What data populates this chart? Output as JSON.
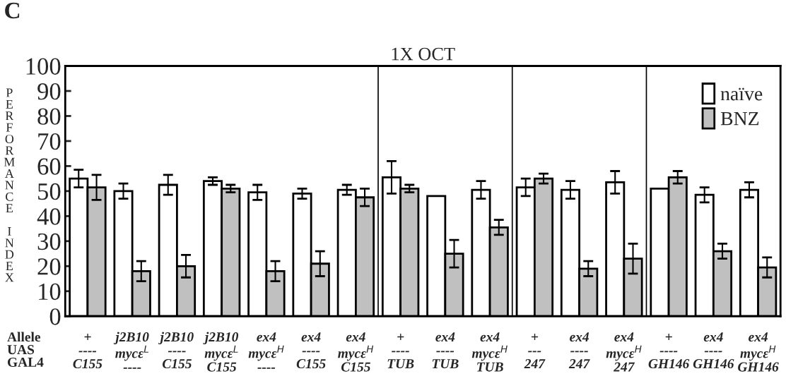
{
  "chart_data": {
    "type": "bar",
    "title": "1X OCT",
    "ylabel": "PERFORMANCE INDEX",
    "categories": [
      "+\n----\nC155",
      "j2B10\nmycε$^{L}$\n----",
      "j2B10\n----\nC155",
      "j2B10\nmycε$^{L}$\nC155",
      "ex4\nmycε$^{H}$\n----",
      "ex4\n----\nC155",
      "ex4\nmycε$^{H}$\nC155",
      "+\n----\nTUB",
      "ex4\n----\nTUB",
      "ex4\nmycε$^{H}$\nTUB",
      "+\n---\n247",
      "ex4\n----\n247",
      "ex4\nmycε$^{H}$\n247",
      "+\n----\nGH146",
      "ex4\n----\nGH146",
      "ex4\nmycε$^{H}$\nGH146"
    ],
    "series": [
      {
        "name": "naïve",
        "color": "#ffffff",
        "values": [
          55,
          50,
          52.5,
          54,
          49.5,
          49,
          50.5,
          55.5,
          48,
          50.5,
          51.5,
          50.5,
          53.5,
          51,
          48.5,
          50.5
        ],
        "errors": [
          3.5,
          3,
          4,
          1.5,
          3,
          2,
          2,
          6.5,
          null,
          3.5,
          3.5,
          3.5,
          4.5,
          null,
          3,
          3
        ]
      },
      {
        "name": "BNZ",
        "color": "#c0c0c0",
        "values": [
          51.5,
          18,
          20,
          51,
          18,
          21,
          47.5,
          51,
          25,
          35.5,
          55,
          19,
          23,
          55.5,
          26,
          19.5
        ],
        "errors": [
          5,
          4,
          4.5,
          1.5,
          4,
          5,
          3.5,
          1.5,
          5.5,
          3,
          2,
          3,
          6,
          2.5,
          3,
          4
        ]
      }
    ],
    "ylim": [
      0,
      100
    ],
    "yticks": [
      0,
      10,
      20,
      30,
      40,
      50,
      60,
      70,
      80,
      90,
      100
    ],
    "annotations": [
      "C",
      "Allele",
      "UAS",
      "GAL4"
    ],
    "legend": "top right",
    "grid": false
  }
}
